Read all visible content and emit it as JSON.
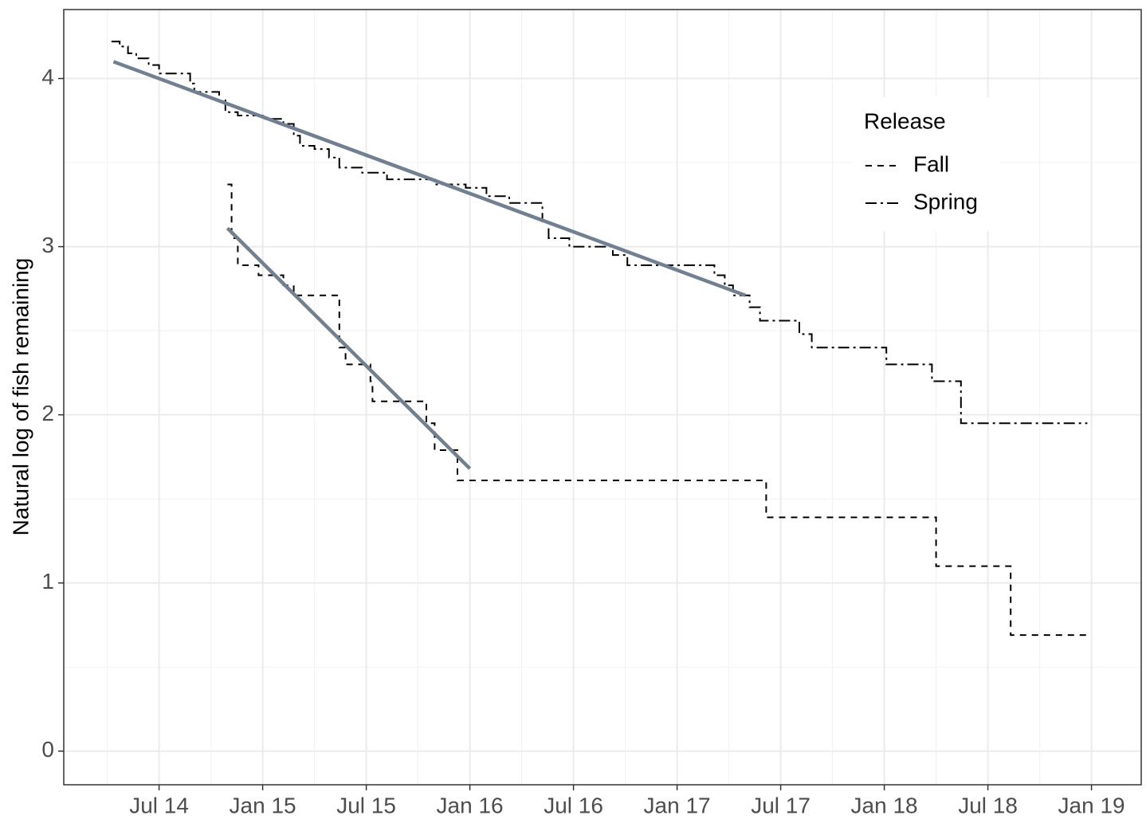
{
  "chart_data": {
    "type": "step",
    "y_label": "Natural log of fish remaining",
    "legend_title": "Release",
    "legend_position": "top-right",
    "grid": true,
    "xlim": [
      2014.04,
      2019.24
    ],
    "ylim": [
      -0.2,
      4.41
    ],
    "xticks": [
      {
        "value": 2014.5,
        "label": "Jul 14"
      },
      {
        "value": 2015.0,
        "label": "Jan 15"
      },
      {
        "value": 2015.5,
        "label": "Jul 15"
      },
      {
        "value": 2016.0,
        "label": "Jan 16"
      },
      {
        "value": 2016.5,
        "label": "Jul 16"
      },
      {
        "value": 2017.0,
        "label": "Jan 17"
      },
      {
        "value": 2017.5,
        "label": "Jul 17"
      },
      {
        "value": 2018.0,
        "label": "Jan 18"
      },
      {
        "value": 2018.5,
        "label": "Jul 18"
      },
      {
        "value": 2019.0,
        "label": "Jan 19"
      }
    ],
    "yticks": [
      0,
      1,
      2,
      3,
      4
    ],
    "series": [
      {
        "name": "Fall",
        "color": "#000000",
        "line_style": "dashed",
        "x": [
          2014.83,
          2014.85,
          2014.88,
          2014.98,
          2015.1,
          2015.15,
          2015.37,
          2015.4,
          2015.52,
          2015.53,
          2015.79,
          2015.83,
          2015.94,
          2017.43,
          2018.25,
          2018.61,
          2019.0
        ],
        "values": [
          3.37,
          3.05,
          2.89,
          2.83,
          2.77,
          2.71,
          2.4,
          2.3,
          2.2,
          2.08,
          1.95,
          1.79,
          1.61,
          1.39,
          1.1,
          0.69,
          0.69
        ]
      },
      {
        "name": "Spring",
        "color": "#000000",
        "line_style": "dashdot",
        "x": [
          2014.27,
          2014.31,
          2014.35,
          2014.39,
          2014.45,
          2014.5,
          2014.65,
          2014.67,
          2014.79,
          2014.82,
          2014.88,
          2015.0,
          2015.1,
          2015.15,
          2015.18,
          2015.25,
          2015.32,
          2015.37,
          2015.48,
          2015.6,
          2015.83,
          2015.98,
          2016.08,
          2016.19,
          2016.35,
          2016.38,
          2016.48,
          2016.69,
          2016.76,
          2017.18,
          2017.23,
          2017.27,
          2017.35,
          2017.4,
          2017.59,
          2017.65,
          2018.01,
          2018.23,
          2018.37,
          2018.98
        ],
        "values": [
          4.22,
          4.19,
          4.15,
          4.12,
          4.08,
          4.03,
          3.97,
          3.92,
          3.87,
          3.8,
          3.78,
          3.76,
          3.73,
          3.66,
          3.6,
          3.58,
          3.53,
          3.47,
          3.44,
          3.4,
          3.37,
          3.35,
          3.3,
          3.26,
          3.15,
          3.05,
          3.0,
          2.95,
          2.89,
          2.83,
          2.77,
          2.71,
          2.64,
          2.56,
          2.48,
          2.4,
          2.3,
          2.2,
          1.95,
          1.95
        ]
      }
    ],
    "fits": [
      {
        "color": "#708090",
        "x": [
          2014.83,
          2016.0
        ],
        "values": [
          3.11,
          1.68
        ]
      },
      {
        "color": "#708090",
        "x": [
          2014.28,
          2017.33
        ],
        "values": [
          4.1,
          2.71
        ]
      }
    ]
  }
}
